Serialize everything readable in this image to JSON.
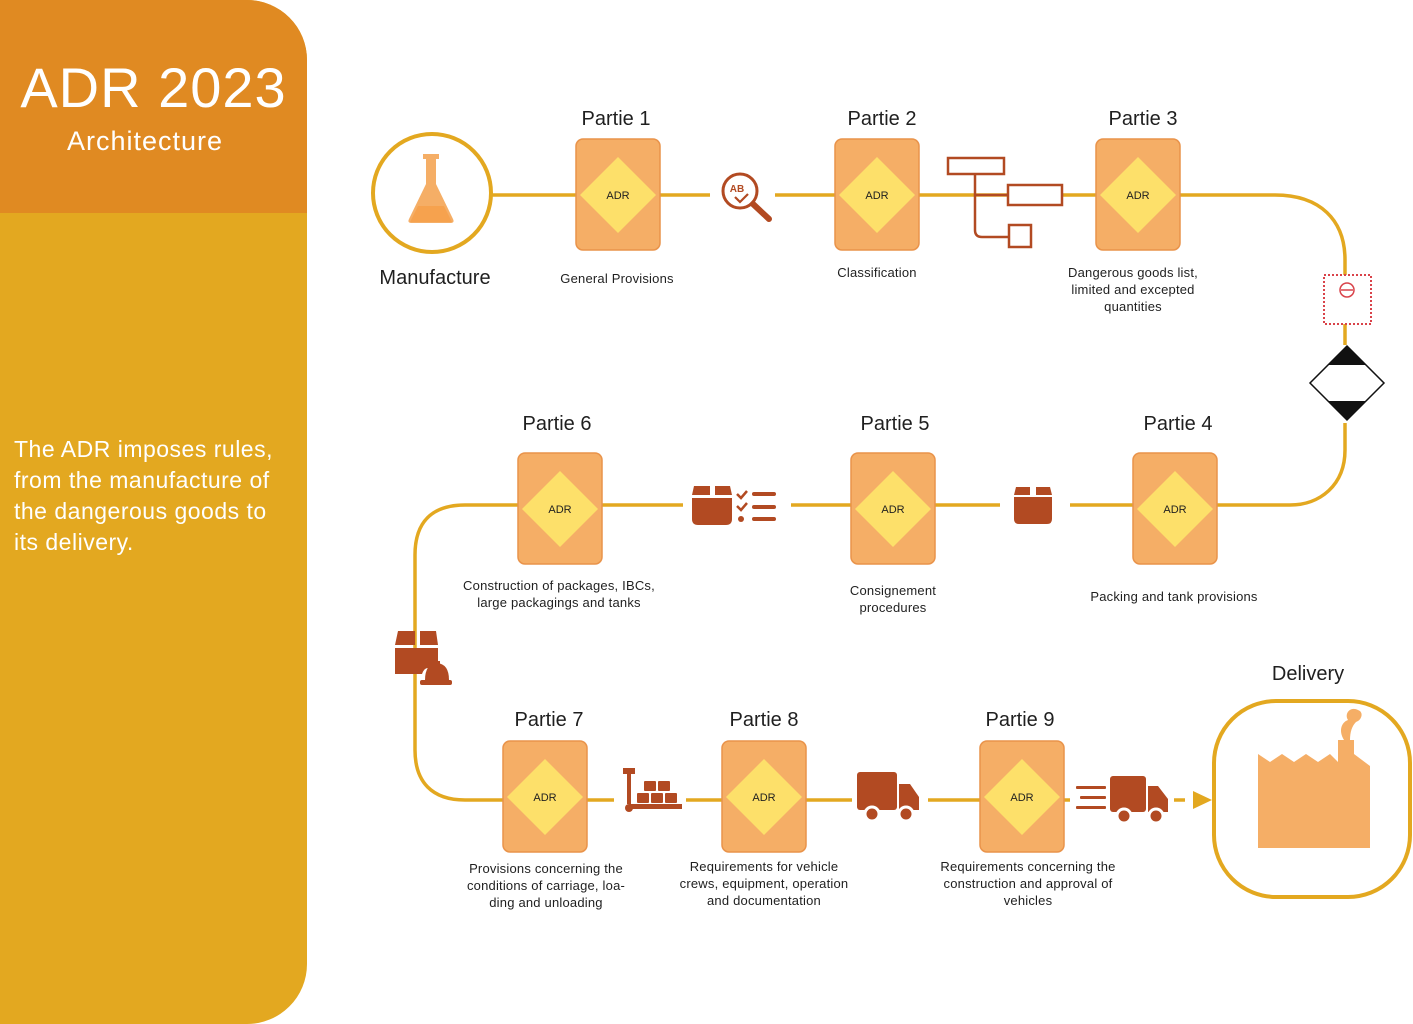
{
  "sidebar": {
    "title": "ADR 2023",
    "subtitle": "Architecture",
    "description": "The ADR imposes rules, from the manufacture of the dangerous goods to its delivery."
  },
  "colors": {
    "sidebar_top": "#e08a22",
    "sidebar": "#e3a820",
    "path": "#e3a820",
    "card": "#f5ae66",
    "card_border": "#e9934a",
    "diamond": "#fde06a",
    "icon_brown": "#b24a22"
  },
  "start": {
    "label": "Manufacture",
    "icon": "flask-icon"
  },
  "end": {
    "label": "Delivery",
    "icon": "factory-icon"
  },
  "badge_text": "ADR",
  "parts": [
    {
      "title": "Partie 1",
      "caption": [
        "General Provisions"
      ]
    },
    {
      "title": "Partie 2",
      "caption": [
        "Classification"
      ]
    },
    {
      "title": "Partie 3",
      "caption": [
        "Dangerous goods list,",
        "limited and excepted",
        "quantities"
      ]
    },
    {
      "title": "Partie 4",
      "caption": [
        "Packing and tank provisions"
      ]
    },
    {
      "title": "Partie 5",
      "caption": [
        "Consignement",
        "procedures"
      ]
    },
    {
      "title": "Partie 6",
      "caption": [
        "Construction of packages, IBCs,",
        "large packagings and tanks"
      ]
    },
    {
      "title": "Partie 7",
      "caption": [
        "Provisions concerning the",
        "conditions of carriage, loa-",
        "ding and unloading"
      ]
    },
    {
      "title": "Partie 8",
      "caption": [
        "Requirements for vehicle",
        "crews, equipment, operation",
        "and documentation"
      ]
    },
    {
      "title": "Partie 9",
      "caption": [
        "Requirements concerning the",
        "construction and approval of",
        "vehicles"
      ]
    }
  ],
  "connector_icons": [
    "ab-magnifier-icon",
    "tree-diagram-icon",
    "stamp-icon",
    "hazard-diamond-icon",
    "box-icon",
    "box-checklist-icon",
    "box-helmet-icon",
    "pallet-jack-icon",
    "truck-icon",
    "moving-truck-icon"
  ]
}
